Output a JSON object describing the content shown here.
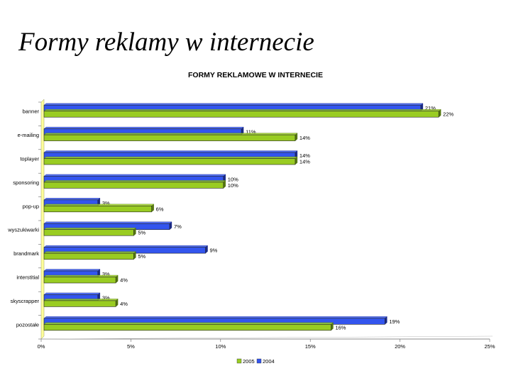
{
  "slide_title": "Formy reklamy w internecie",
  "chart_data": {
    "type": "bar",
    "orientation": "horizontal",
    "title": "FORMY REKLAMOWE W INTERNECIE",
    "categories": [
      "banner",
      "e-mailing",
      "toplayer",
      "sponsoring",
      "pop-up",
      "wyszukiwarki",
      "brandmark",
      "interstitial",
      "skyscrapper",
      "pozostałe"
    ],
    "series": [
      {
        "name": "2004",
        "color": "#3355ee",
        "values": [
          21,
          11,
          14,
          10,
          3,
          7,
          9,
          3,
          3,
          19
        ]
      },
      {
        "name": "2005",
        "color": "#99cc22",
        "values": [
          22,
          14,
          14,
          10,
          6,
          5,
          5,
          4,
          4,
          16
        ]
      }
    ],
    "xlim": [
      0,
      25
    ],
    "ticks": [
      0,
      5,
      10,
      15,
      20,
      25
    ],
    "tick_labels": [
      "0%",
      "5%",
      "10%",
      "15%",
      "20%",
      "25%"
    ],
    "value_suffix": "%",
    "legend_order": [
      "2005",
      "2004"
    ],
    "legend_position": "bottom",
    "grid": false
  }
}
